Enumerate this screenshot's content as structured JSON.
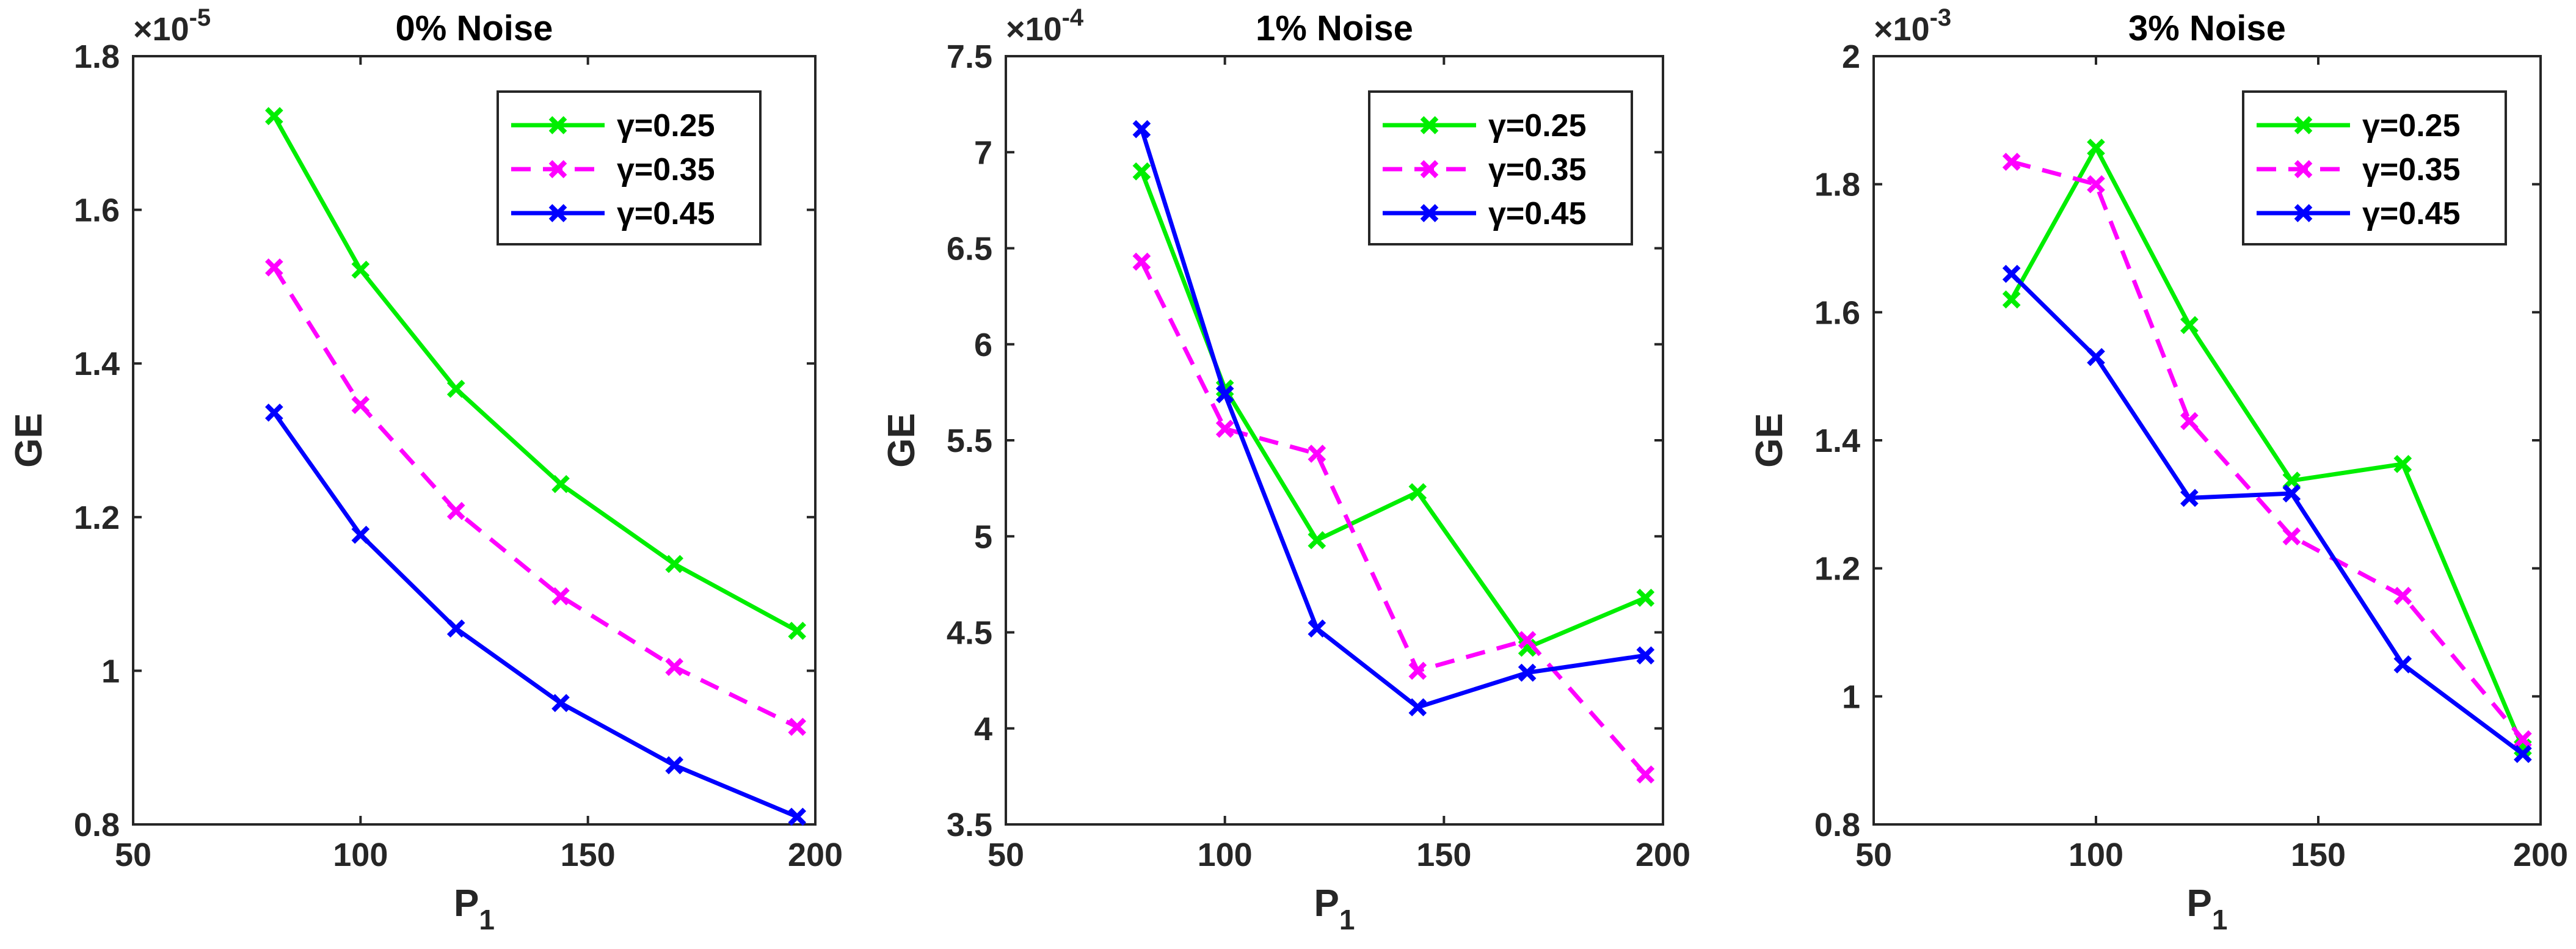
{
  "chart_data": [
    {
      "type": "line",
      "title": "0% Noise",
      "xlabel": "P",
      "xlabel_subscript": "1",
      "ylabel": "GE",
      "exponent_base": "×10",
      "exponent_power": "-5",
      "xlim": [
        50,
        200
      ],
      "ylim": [
        0.8,
        1.8
      ],
      "xticks": [
        50,
        100,
        150,
        200
      ],
      "xtick_labels": [
        "50",
        "100",
        "150",
        "200"
      ],
      "yticks": [
        0.8,
        1.0,
        1.2,
        1.4,
        1.6,
        1.8
      ],
      "ytick_labels": [
        "0.8",
        "1",
        "1.2",
        "1.4",
        "1.6",
        "1.8"
      ],
      "x": [
        81,
        100,
        121,
        144,
        169,
        196
      ],
      "legend_position": "top-right",
      "series": [
        {
          "name": "γ=0.25",
          "color": "#00ee00",
          "dash": "solid",
          "values": [
            1.722,
            1.522,
            1.367,
            1.243,
            1.139,
            1.052
          ]
        },
        {
          "name": "γ=0.35",
          "color": "#ff00ff",
          "dash": "dashed",
          "values": [
            1.525,
            1.346,
            1.208,
            1.097,
            1.005,
            0.927
          ]
        },
        {
          "name": "γ=0.45",
          "color": "#0000ff",
          "dash": "solid",
          "values": [
            1.336,
            1.177,
            1.055,
            0.958,
            0.877,
            0.81
          ]
        }
      ]
    },
    {
      "type": "line",
      "title": "1% Noise",
      "xlabel": "P",
      "xlabel_subscript": "1",
      "ylabel": "GE",
      "exponent_base": "×10",
      "exponent_power": "-4",
      "xlim": [
        50,
        200
      ],
      "ylim": [
        3.5,
        7.5
      ],
      "xticks": [
        50,
        100,
        150,
        200
      ],
      "xtick_labels": [
        "50",
        "100",
        "150",
        "200"
      ],
      "yticks": [
        3.5,
        4.0,
        4.5,
        5.0,
        5.5,
        6.0,
        6.5,
        7.0,
        7.5
      ],
      "ytick_labels": [
        "3.5",
        "4",
        "4.5",
        "5",
        "5.5",
        "6",
        "6.5",
        "7",
        "7.5"
      ],
      "x": [
        81,
        100,
        121,
        144,
        169,
        196
      ],
      "legend_position": "top-right",
      "series": [
        {
          "name": "γ=0.25",
          "color": "#00ee00",
          "dash": "solid",
          "values": [
            6.9,
            5.77,
            4.98,
            5.23,
            4.42,
            4.68
          ]
        },
        {
          "name": "γ=0.35",
          "color": "#ff00ff",
          "dash": "dashed",
          "values": [
            6.43,
            5.56,
            5.43,
            4.3,
            4.46,
            3.76
          ]
        },
        {
          "name": "γ=0.45",
          "color": "#0000ff",
          "dash": "solid",
          "values": [
            7.12,
            5.74,
            4.52,
            4.11,
            4.29,
            4.38
          ]
        }
      ]
    },
    {
      "type": "line",
      "title": "3% Noise",
      "xlabel": "P",
      "xlabel_subscript": "1",
      "ylabel": "GE",
      "exponent_base": "×10",
      "exponent_power": "-3",
      "xlim": [
        50,
        200
      ],
      "ylim": [
        0.8,
        2.0
      ],
      "xticks": [
        50,
        100,
        150,
        200
      ],
      "xtick_labels": [
        "50",
        "100",
        "150",
        "200"
      ],
      "yticks": [
        0.8,
        1.0,
        1.2,
        1.4,
        1.6,
        1.8,
        2.0
      ],
      "ytick_labels": [
        "0.8",
        "1",
        "1.2",
        "1.4",
        "1.6",
        "1.8",
        "2"
      ],
      "x": [
        81,
        100,
        121,
        144,
        169,
        196
      ],
      "legend_position": "top-right",
      "series": [
        {
          "name": "γ=0.25",
          "color": "#00ee00",
          "dash": "solid",
          "values": [
            1.62,
            1.857,
            1.58,
            1.337,
            1.363,
            0.92
          ]
        },
        {
          "name": "γ=0.35",
          "color": "#ff00ff",
          "dash": "dashed",
          "values": [
            1.835,
            1.8,
            1.43,
            1.25,
            1.157,
            0.933
          ]
        },
        {
          "name": "γ=0.45",
          "color": "#0000ff",
          "dash": "solid",
          "values": [
            1.66,
            1.53,
            1.31,
            1.317,
            1.05,
            0.91
          ]
        }
      ]
    }
  ]
}
